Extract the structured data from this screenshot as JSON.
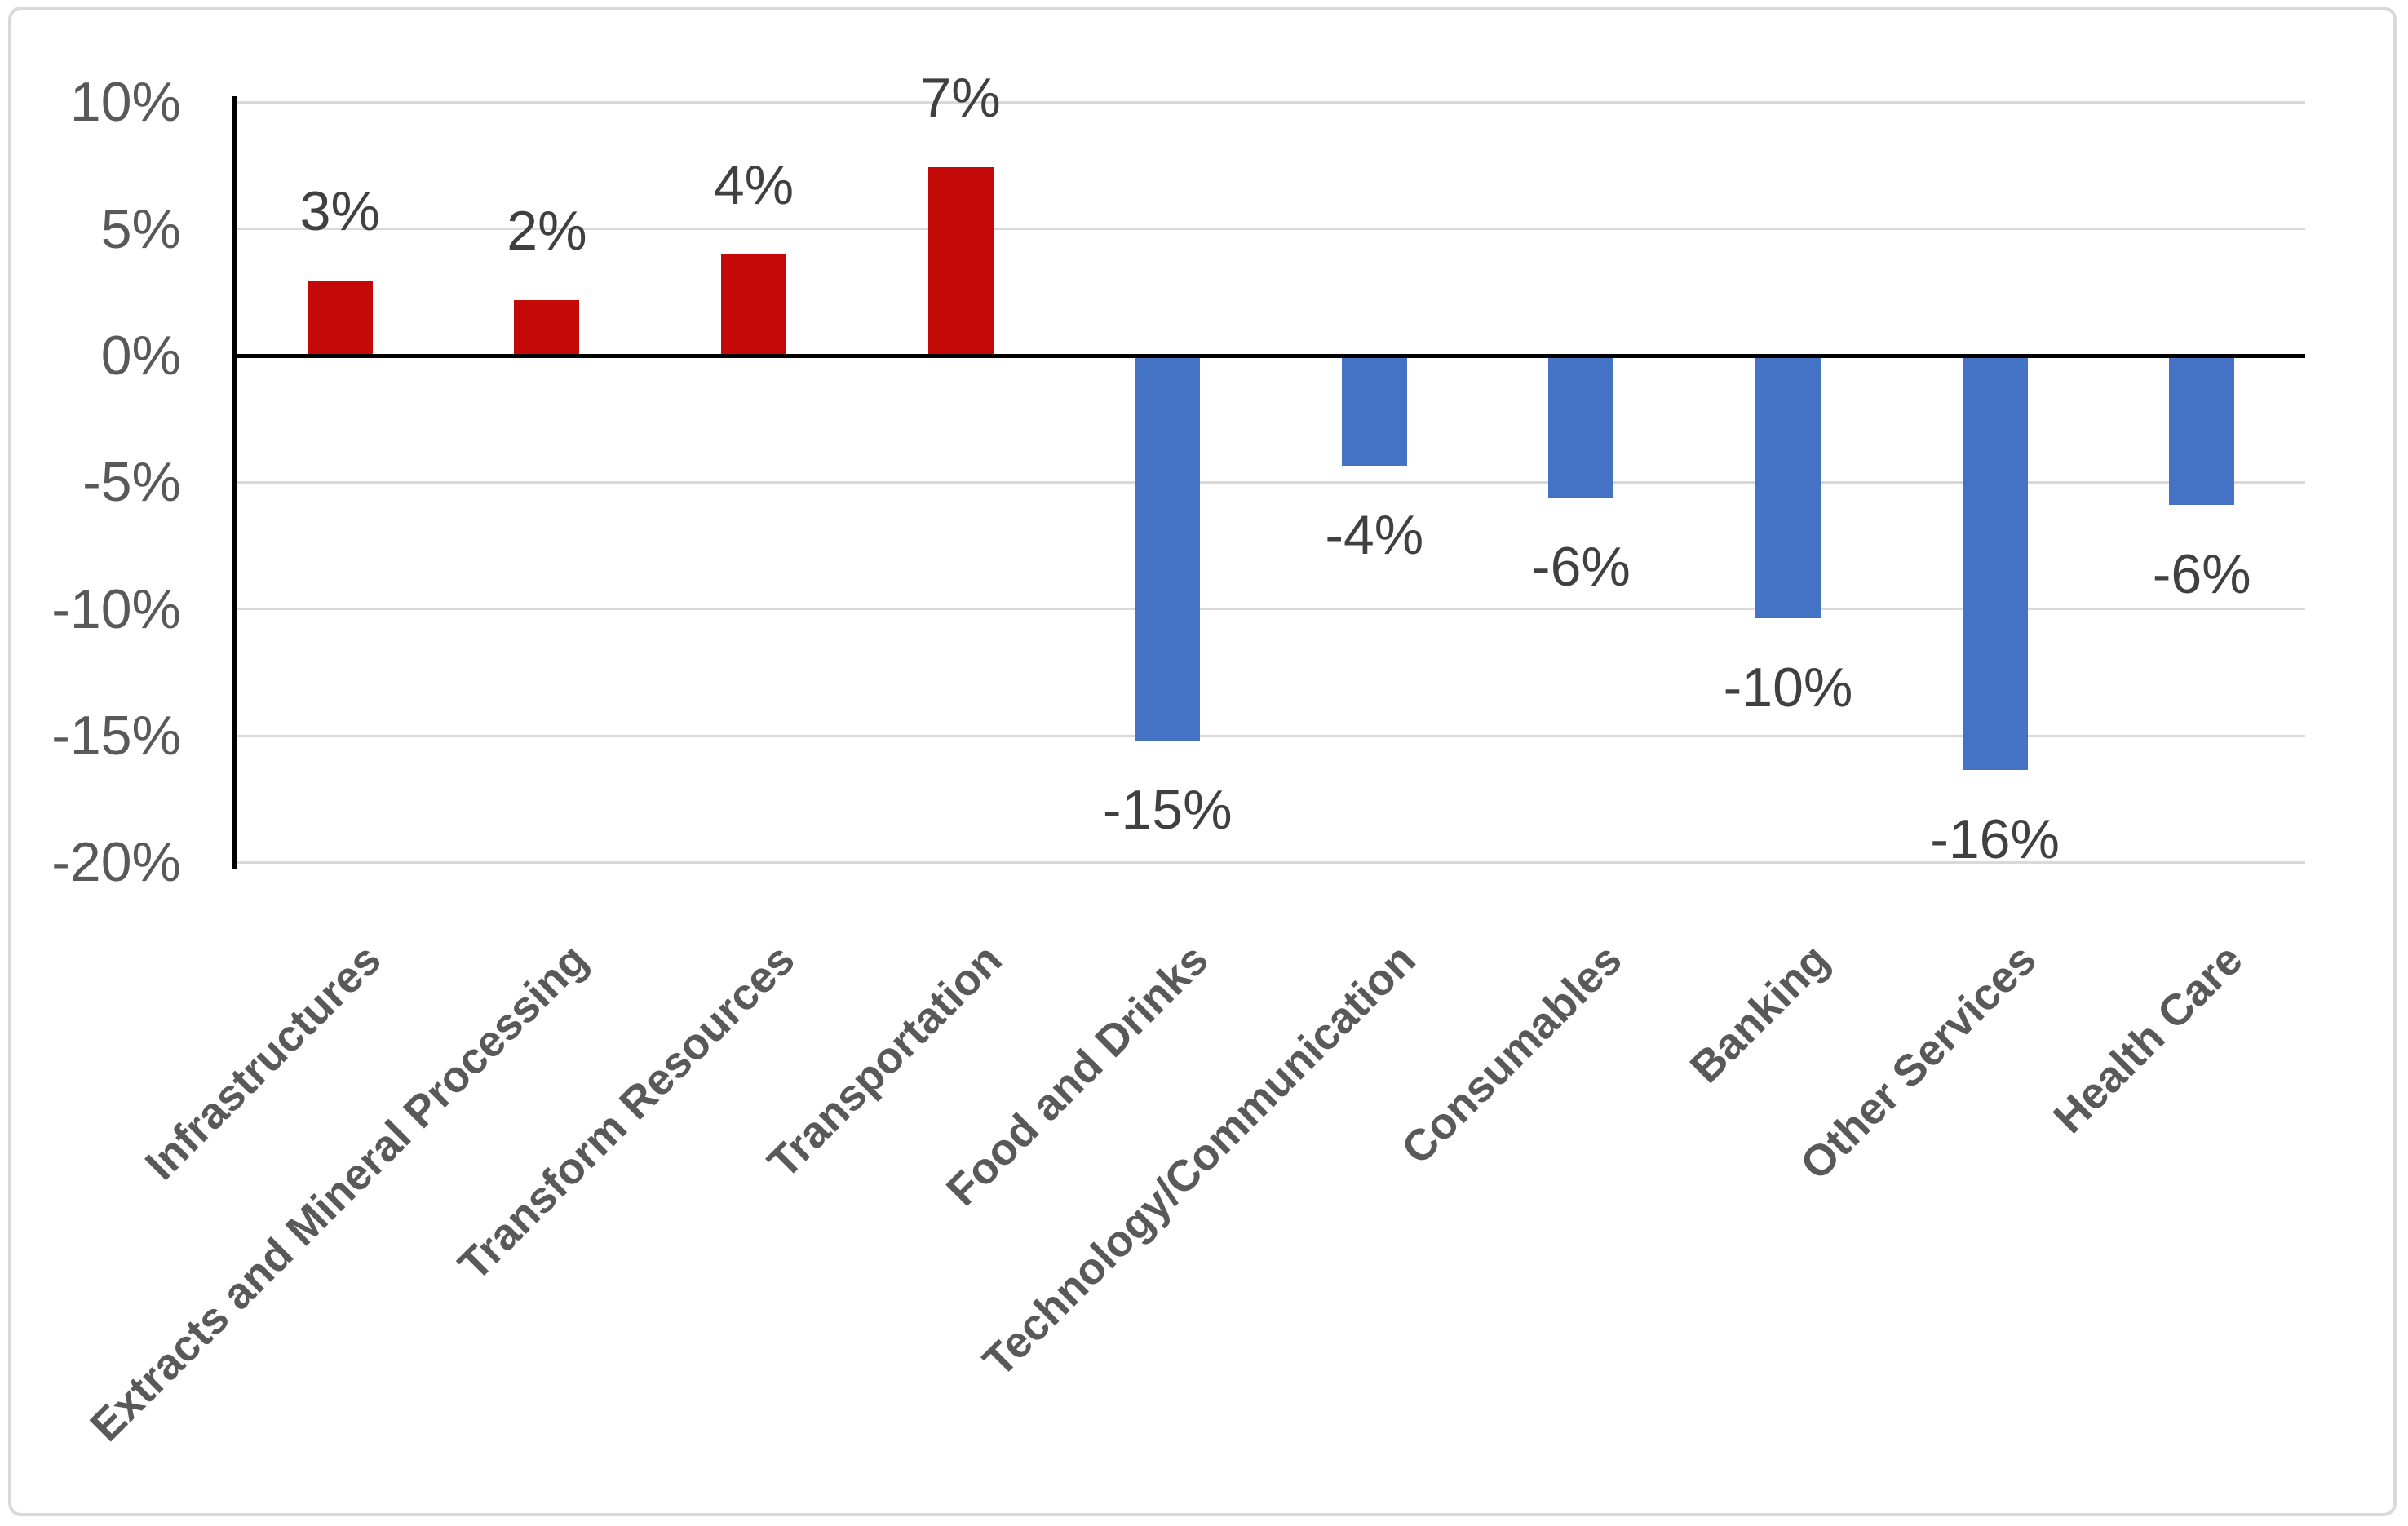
{
  "chart_data": {
    "type": "bar",
    "title": "",
    "xlabel": "",
    "ylabel": "",
    "categories": [
      "Infrastructures",
      "Extracts and Mineral Processing",
      "Transform Resources",
      "Transportation",
      "Food and Drinks",
      "Technology/Communication",
      "Consumables",
      "Banking",
      "Other Services",
      "Health Care"
    ],
    "values": [
      2.95,
      2.2,
      4.0,
      7.45,
      -15.2,
      -4.35,
      -5.6,
      -10.35,
      -16.35,
      -5.9
    ],
    "value_labels": [
      "3%",
      "2%",
      "4%",
      "7%",
      "-15%",
      "-4%",
      "-6%",
      "-10%",
      "-16%",
      "-6%"
    ],
    "yticks": [
      10,
      5,
      0,
      -5,
      -10,
      -15,
      -20
    ],
    "ytick_labels": [
      "10%",
      "5%",
      "0%",
      "-5%",
      "-10%",
      "-15%",
      "-20%"
    ],
    "ylim": [
      -20,
      10
    ],
    "grid": true,
    "legend": "none",
    "colors": {
      "positive": "#C40909",
      "negative": "#4472C4",
      "gridline": "#D9D9D9",
      "axis": "#000000",
      "tick_text": "#595959",
      "category_text": "#595959",
      "value_text": "#404040",
      "frame_border": "#D9D9D9",
      "background": "#FFFFFF"
    }
  }
}
